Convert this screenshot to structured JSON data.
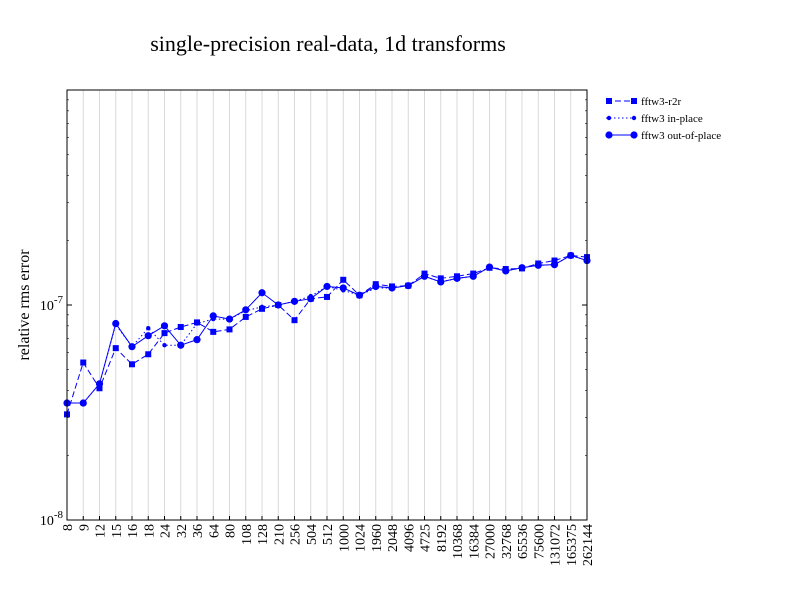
{
  "chart_data": {
    "type": "line",
    "title": "single-precision real-data, 1d transforms",
    "xlabel": "",
    "ylabel": "relative rms error",
    "yscale": "log",
    "ylim": [
      1e-08,
      1e-06
    ],
    "grid": "vertical",
    "legend_position": "right",
    "categories": [
      "8",
      "9",
      "12",
      "15",
      "16",
      "18",
      "24",
      "32",
      "36",
      "64",
      "80",
      "108",
      "128",
      "210",
      "256",
      "504",
      "512",
      "1000",
      "1024",
      "1960",
      "2048",
      "4096",
      "4725",
      "8192",
      "10368",
      "16384",
      "27000",
      "32768",
      "65536",
      "75600",
      "131072",
      "165375",
      "262144"
    ],
    "y_ticks": [
      {
        "value": 1e-08,
        "base": "10",
        "exp": "-8"
      },
      {
        "value": 1e-07,
        "base": "10",
        "exp": "-7"
      }
    ],
    "series": [
      {
        "name": "fftw3-r2r",
        "style": "dashed",
        "marker": "square",
        "color": "#0000ff",
        "values": [
          3.1e-08,
          5.4e-08,
          4.1e-08,
          6.3e-08,
          5.3e-08,
          5.9e-08,
          7.4e-08,
          7.9e-08,
          8.3e-08,
          7.5e-08,
          7.7e-08,
          8.8e-08,
          9.6e-08,
          1e-07,
          8.5e-08,
          1.07e-07,
          1.09e-07,
          1.31e-07,
          1.11e-07,
          1.25e-07,
          1.22e-07,
          1.23e-07,
          1.4e-07,
          1.33e-07,
          1.36e-07,
          1.4e-07,
          1.49e-07,
          1.47e-07,
          1.48e-07,
          1.56e-07,
          1.61e-07,
          1.7e-07,
          1.67e-07
        ]
      },
      {
        "name": "fftw3 in-place",
        "style": "dotted",
        "marker": "dot",
        "color": "#0000ff",
        "values": [
          3.5e-08,
          3.5e-08,
          4.3e-08,
          8.1e-08,
          6.4e-08,
          7.8e-08,
          6.5e-08,
          6.5e-08,
          8.2e-08,
          8.6e-08,
          8.6e-08,
          9.4e-08,
          9.8e-08,
          1e-07,
          1.04e-07,
          1.1e-07,
          1.22e-07,
          1.17e-07,
          1.11e-07,
          1.2e-07,
          1.2e-07,
          1.23e-07,
          1.36e-07,
          1.28e-07,
          1.33e-07,
          1.36e-07,
          1.5e-07,
          1.44e-07,
          1.49e-07,
          1.53e-07,
          1.54e-07,
          1.7e-07,
          1.61e-07
        ]
      },
      {
        "name": "fftw3 out-of-place",
        "style": "solid",
        "marker": "circle",
        "color": "#0000ff",
        "values": [
          3.5e-08,
          3.5e-08,
          4.3e-08,
          8.2e-08,
          6.4e-08,
          7.2e-08,
          8e-08,
          6.5e-08,
          6.9e-08,
          8.9e-08,
          8.6e-08,
          9.5e-08,
          1.14e-07,
          1e-07,
          1.04e-07,
          1.07e-07,
          1.22e-07,
          1.2e-07,
          1.11e-07,
          1.22e-07,
          1.2e-07,
          1.23e-07,
          1.36e-07,
          1.28e-07,
          1.33e-07,
          1.36e-07,
          1.5e-07,
          1.44e-07,
          1.49e-07,
          1.53e-07,
          1.54e-07,
          1.7e-07,
          1.61e-07
        ]
      }
    ]
  }
}
